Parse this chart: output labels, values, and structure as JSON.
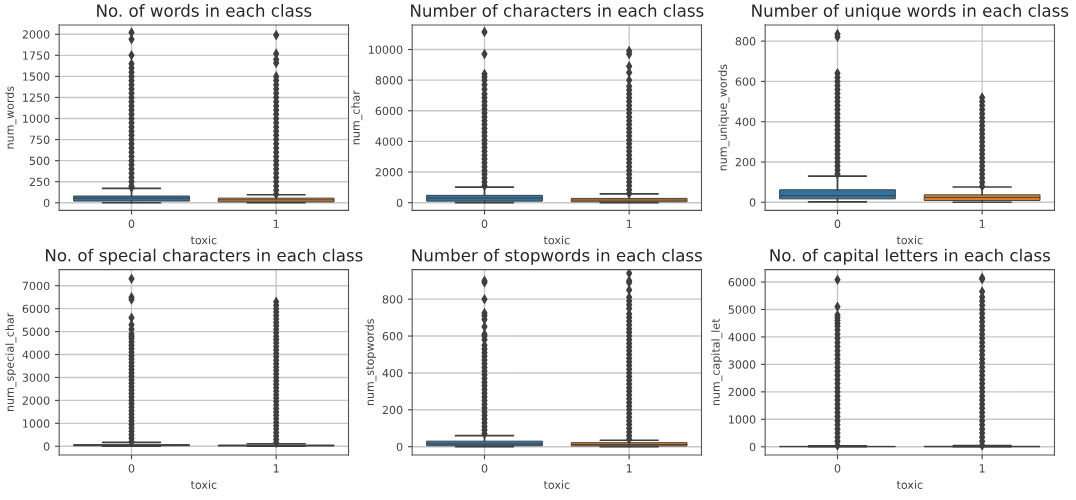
{
  "chart_data": [
    {
      "type": "box",
      "title": "No. of words in each class",
      "xlabel": "toxic",
      "ylabel": "num_words",
      "categories": [
        "0",
        "1"
      ],
      "colors": [
        "#3274a1",
        "#e1812c"
      ],
      "ylim": [
        -90,
        2110
      ],
      "yticks": [
        0,
        250,
        500,
        750,
        1000,
        1250,
        1500,
        1750,
        2000
      ],
      "grid": true,
      "marker": "diamond",
      "boxes": [
        {
          "low": 0,
          "q1": 20,
          "median": 55,
          "q3": 80,
          "high": 170,
          "outliers": [
            180,
            200,
            250,
            300,
            350,
            400,
            450,
            500,
            550,
            600,
            650,
            700,
            750,
            800,
            850,
            900,
            950,
            1000,
            1050,
            1100,
            1150,
            1200,
            1250,
            1300,
            1350,
            1400,
            1450,
            1500,
            1550,
            1600,
            1650,
            1750,
            1940,
            2020
          ]
        },
        {
          "low": 0,
          "q1": 10,
          "median": 35,
          "q3": 55,
          "high": 95,
          "outliers": [
            100,
            150,
            200,
            250,
            300,
            350,
            400,
            450,
            500,
            550,
            600,
            650,
            700,
            750,
            800,
            850,
            900,
            950,
            1000,
            1050,
            1100,
            1150,
            1200,
            1250,
            1300,
            1350,
            1400,
            1450,
            1500,
            1660,
            1700,
            1770,
            1990
          ]
        }
      ]
    },
    {
      "type": "box",
      "title": "Number of characters in each class",
      "xlabel": "toxic",
      "ylabel": "num_char",
      "categories": [
        "0",
        "1"
      ],
      "colors": [
        "#3274a1",
        "#e1812c"
      ],
      "ylim": [
        -500,
        11600
      ],
      "yticks": [
        0,
        2000,
        4000,
        6000,
        8000,
        10000
      ],
      "grid": true,
      "marker": "diamond",
      "boxes": [
        {
          "low": 0,
          "q1": 100,
          "median": 300,
          "q3": 480,
          "high": 1020,
          "outliers": [
            1100,
            1350,
            1600,
            1850,
            2100,
            2350,
            2600,
            2850,
            3100,
            3350,
            3600,
            3850,
            4100,
            4350,
            4600,
            4850,
            5100,
            5350,
            5600,
            5850,
            6100,
            6350,
            6600,
            6850,
            7100,
            7400,
            7700,
            8000,
            8200,
            8400,
            9700,
            11150
          ]
        },
        {
          "low": 0,
          "q1": 60,
          "median": 170,
          "q3": 280,
          "high": 570,
          "outliers": [
            600,
            850,
            1100,
            1350,
            1600,
            1850,
            2100,
            2350,
            2600,
            2850,
            3100,
            3350,
            3600,
            3850,
            4100,
            4350,
            4600,
            4850,
            5100,
            5350,
            5600,
            5850,
            6100,
            6350,
            6600,
            6850,
            7100,
            7350,
            7600,
            8000,
            8500,
            8900,
            9700,
            9900
          ]
        }
      ]
    },
    {
      "type": "box",
      "title": "Number of unique words in each class",
      "xlabel": "toxic",
      "ylabel": "num_unique_words",
      "categories": [
        "0",
        "1"
      ],
      "colors": [
        "#3274a1",
        "#e1812c"
      ],
      "ylim": [
        -40,
        880
      ],
      "yticks": [
        0,
        200,
        400,
        600,
        800
      ],
      "grid": true,
      "marker": "diamond",
      "boxes": [
        {
          "low": 2,
          "q1": 17,
          "median": 33,
          "q3": 62,
          "high": 130,
          "outliers": [
            140,
            160,
            180,
            200,
            220,
            240,
            260,
            280,
            300,
            320,
            340,
            360,
            380,
            400,
            420,
            440,
            460,
            480,
            500,
            520,
            540,
            560,
            580,
            600,
            620,
            640,
            820,
            835
          ]
        },
        {
          "low": 0,
          "q1": 9,
          "median": 24,
          "q3": 37,
          "high": 76,
          "outliers": [
            80,
            100,
            120,
            140,
            160,
            180,
            200,
            220,
            240,
            260,
            280,
            300,
            320,
            340,
            360,
            380,
            400,
            420,
            440,
            460,
            480,
            500,
            520
          ]
        }
      ]
    },
    {
      "type": "box",
      "title": "No. of special characters in each class",
      "xlabel": "toxic",
      "ylabel": "num_special_char",
      "categories": [
        "0",
        "1"
      ],
      "colors": [
        "#3274a1",
        "#e1812c"
      ],
      "ylim": [
        -380,
        7700
      ],
      "yticks": [
        0,
        1000,
        2000,
        3000,
        4000,
        5000,
        6000,
        7000
      ],
      "grid": true,
      "marker": "diamond",
      "boxes": [
        {
          "low": 0,
          "q1": 25,
          "median": 45,
          "q3": 75,
          "high": 170,
          "outliers": [
            200,
            350,
            500,
            650,
            800,
            950,
            1100,
            1250,
            1400,
            1550,
            1700,
            1850,
            2000,
            2150,
            2300,
            2450,
            2600,
            2750,
            2900,
            3050,
            3200,
            3350,
            3500,
            3650,
            3800,
            3950,
            4100,
            4250,
            4400,
            4550,
            4700,
            4800,
            4900,
            5100,
            5300,
            5600,
            6400,
            6500,
            7300
          ]
        },
        {
          "low": 0,
          "q1": 15,
          "median": 30,
          "q3": 55,
          "high": 110,
          "outliers": [
            150,
            300,
            450,
            600,
            750,
            900,
            1050,
            1200,
            1350,
            1500,
            1650,
            1800,
            1950,
            2100,
            2250,
            2400,
            2550,
            2700,
            2850,
            3000,
            3150,
            3300,
            3450,
            3600,
            3750,
            3900,
            4050,
            4200,
            4350,
            4500,
            4650,
            4800,
            4950,
            5100,
            5250,
            5400,
            5550,
            5700,
            5850,
            6000,
            6150,
            6300
          ]
        }
      ]
    },
    {
      "type": "box",
      "title": "Number of stopwords in each class",
      "xlabel": "toxic",
      "ylabel": "num_stopwords",
      "categories": [
        "0",
        "1"
      ],
      "colors": [
        "#3274a1",
        "#e1812c"
      ],
      "ylim": [
        -45,
        960
      ],
      "yticks": [
        0,
        200,
        400,
        600,
        800
      ],
      "grid": true,
      "marker": "diamond",
      "boxes": [
        {
          "low": 0,
          "q1": 5,
          "median": 15,
          "q3": 30,
          "high": 60,
          "outliers": [
            70,
            90,
            110,
            130,
            150,
            170,
            190,
            210,
            230,
            250,
            270,
            290,
            310,
            330,
            350,
            370,
            390,
            410,
            430,
            450,
            470,
            490,
            510,
            530,
            550,
            580,
            600,
            610,
            650,
            690,
            710,
            725,
            800,
            890,
            900
          ]
        },
        {
          "low": 0,
          "q1": 4,
          "median": 12,
          "q3": 22,
          "high": 35,
          "outliers": [
            40,
            60,
            80,
            100,
            120,
            140,
            160,
            180,
            200,
            220,
            240,
            260,
            280,
            300,
            320,
            340,
            360,
            380,
            400,
            420,
            440,
            460,
            480,
            500,
            520,
            540,
            560,
            580,
            600,
            620,
            640,
            660,
            680,
            700,
            720,
            750,
            770,
            790,
            810,
            850,
            890,
            900,
            940
          ]
        }
      ]
    },
    {
      "type": "box",
      "title": "No. of capital letters in each class",
      "xlabel": "toxic",
      "ylabel": "num_capital_let",
      "categories": [
        "0",
        "1"
      ],
      "colors": [
        "#3274a1",
        "#e1812c"
      ],
      "ylim": [
        -300,
        6450
      ],
      "yticks": [
        0,
        1000,
        2000,
        3000,
        4000,
        5000,
        6000
      ],
      "grid": true,
      "marker": "diamond",
      "boxes": [
        {
          "low": 0,
          "q1": 3,
          "median": 6,
          "q3": 15,
          "high": 30,
          "outliers": [
            50,
            200,
            350,
            500,
            650,
            800,
            950,
            1100,
            1250,
            1400,
            1550,
            1700,
            1850,
            2000,
            2150,
            2300,
            2450,
            2600,
            2750,
            2900,
            3050,
            3200,
            3350,
            3500,
            3650,
            3800,
            3950,
            4100,
            4250,
            4400,
            4500,
            4600,
            4700,
            4800,
            5100,
            6080
          ]
        },
        {
          "low": 0,
          "q1": 2,
          "median": 6,
          "q3": 18,
          "high": 40,
          "outliers": [
            50,
            200,
            350,
            500,
            650,
            800,
            950,
            1100,
            1250,
            1400,
            1550,
            1700,
            1850,
            2000,
            2150,
            2300,
            2450,
            2600,
            2750,
            2900,
            3050,
            3200,
            3350,
            3500,
            3650,
            3800,
            3950,
            4100,
            4250,
            4400,
            4550,
            4700,
            4850,
            5000,
            5150,
            5300,
            5450,
            5650,
            6100,
            6150
          ]
        }
      ]
    }
  ]
}
